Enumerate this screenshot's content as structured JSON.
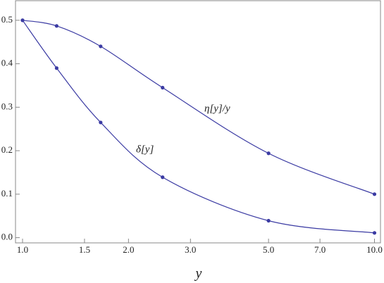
{
  "chart_data": {
    "type": "line",
    "x_label": "y",
    "x": [
      1,
      1.25,
      1.667,
      2.5,
      5,
      10
    ],
    "series": [
      {
        "name": "η[y]/y",
        "color": "#3b3ba3",
        "values": [
          0.5,
          0.487,
          0.44,
          0.345,
          0.194,
          0.1
        ]
      },
      {
        "name": "δ[y]",
        "color": "#3b3ba3",
        "values": [
          0.5,
          0.39,
          0.265,
          0.139,
          0.039,
          0.011
        ]
      }
    ],
    "xscale": "log",
    "xlim": [
      0.955,
      10.4
    ],
    "ylim": [
      -0.012,
      0.545
    ],
    "xticks": [
      {
        "value": 1,
        "label": "1.0"
      },
      1.5,
      {
        "value": 2,
        "label": "2.0"
      },
      {
        "value": 3,
        "label": "3.0"
      },
      {
        "value": 5,
        "label": "5.0"
      },
      {
        "value": 7,
        "label": "7.0"
      },
      {
        "value": 10,
        "label": "10.0"
      }
    ],
    "yticks": [
      {
        "value": 0,
        "label": "0.0"
      },
      0.1,
      0.2,
      0.3,
      0.4,
      0.5
    ]
  }
}
